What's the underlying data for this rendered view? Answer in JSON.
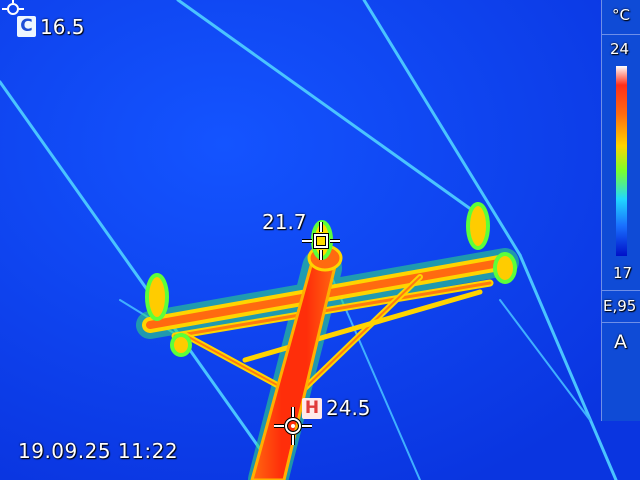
{
  "readouts": {
    "cold": {
      "badge": "C",
      "value": "16.5"
    },
    "center": {
      "value": "21.7"
    },
    "hot": {
      "badge": "H",
      "value": "24.5"
    }
  },
  "timestamp": "19.09.25 11:22",
  "scale": {
    "unit": "°C",
    "max": "24",
    "min": "17",
    "emissivity": "E,95",
    "mode": "A"
  },
  "colors": {
    "background": "#0a3cf0",
    "hot": "#ff3b10",
    "warm": "#ffd400",
    "lukewarm": "#4cff3a",
    "line": "#5ac8ff"
  },
  "icons": {
    "cold_marker": "cold-spot-marker-icon",
    "center_marker": "center-crosshair-icon",
    "hot_marker": "hot-spot-crosshair-icon"
  }
}
